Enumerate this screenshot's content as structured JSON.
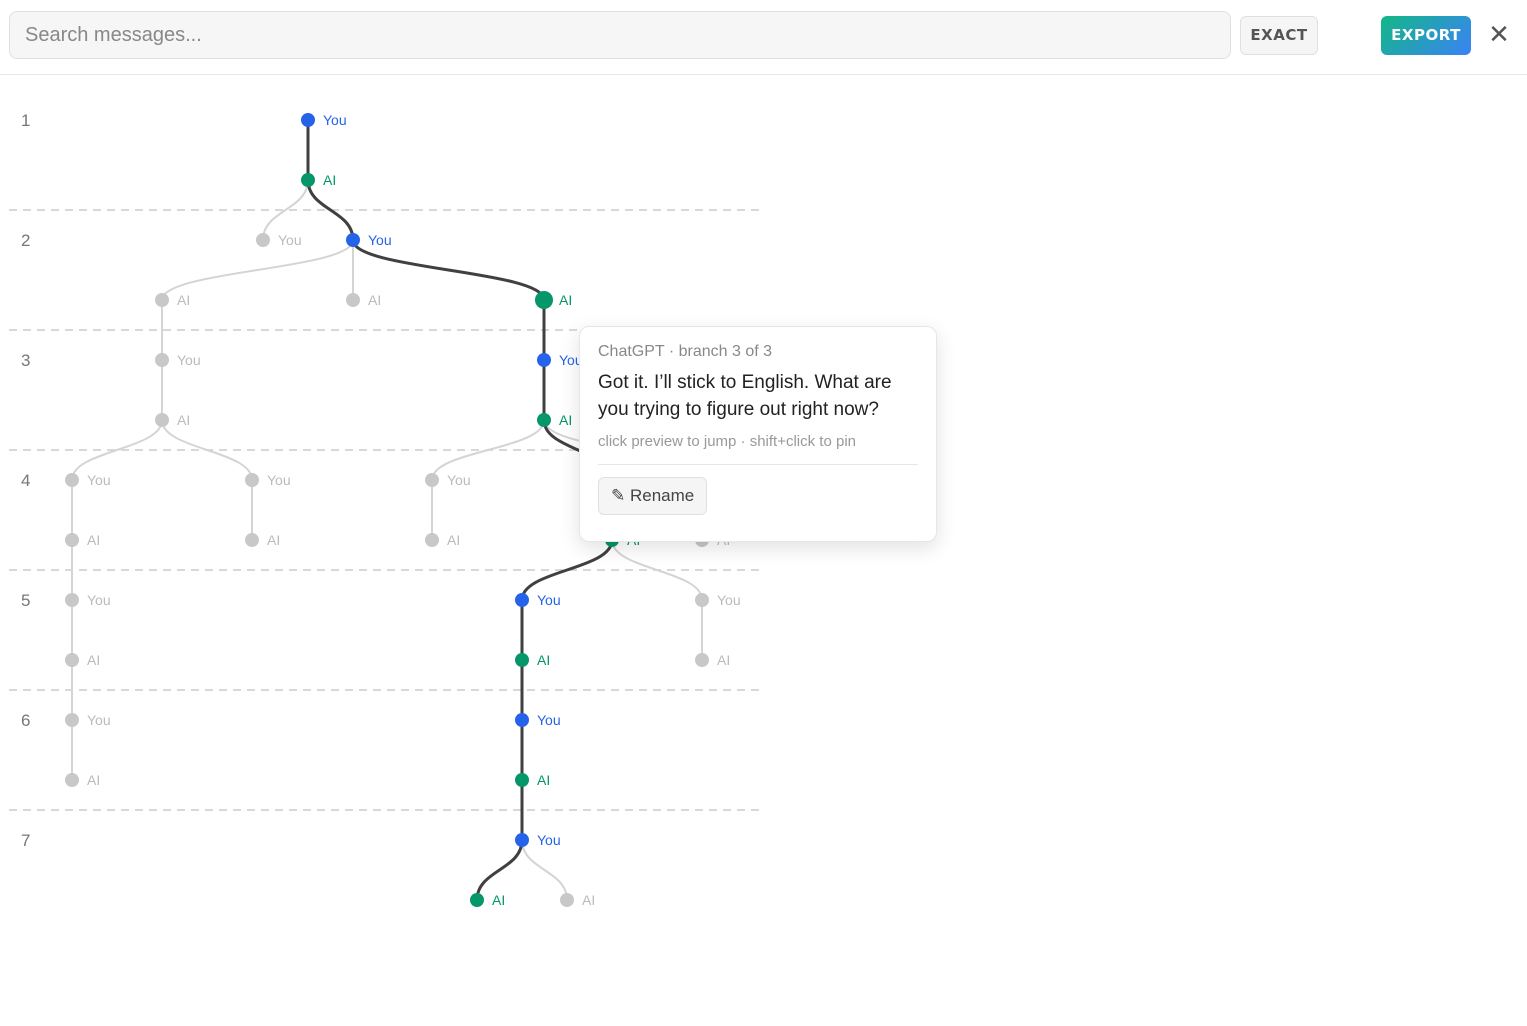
{
  "search": {
    "placeholder": "Search messages..."
  },
  "toolbar": {
    "exact_label": "EXACT",
    "export_label": "EXPORT",
    "close_label": "✕"
  },
  "tree": {
    "turns": [
      "1",
      "2",
      "3",
      "4",
      "5",
      "6",
      "7"
    ],
    "role_labels": {
      "user": "You",
      "ai": "AI"
    },
    "colors": {
      "user": "#2563eb",
      "ai": "#059669",
      "inactive": "#c8c8c8",
      "active_edge": "#404040",
      "inactive_edge": "#d4d4d4"
    }
  },
  "tooltip": {
    "meta": "ChatGPT · branch 3 of 3",
    "message": "Got it. I’ll stick to English. What are you trying to figure out right now?",
    "hint": "click preview to jump · shift+click to pin",
    "rename_label": "Rename"
  }
}
